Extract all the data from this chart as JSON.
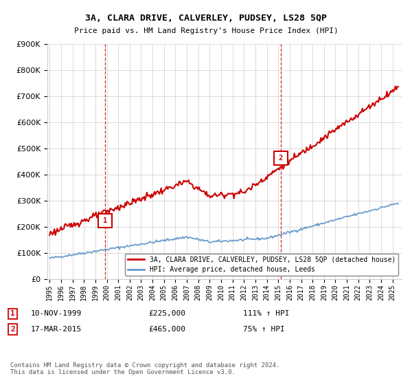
{
  "title": "3A, CLARA DRIVE, CALVERLEY, PUDSEY, LS28 5QP",
  "subtitle": "Price paid vs. HM Land Registry's House Price Index (HPI)",
  "legend_line1": "3A, CLARA DRIVE, CALVERLEY, PUDSEY, LS28 5QP (detached house)",
  "legend_line2": "HPI: Average price, detached house, Leeds",
  "footnote": "Contains HM Land Registry data © Crown copyright and database right 2024.\nThis data is licensed under the Open Government Licence v3.0.",
  "transactions": [
    {
      "label": "1",
      "date": "10-NOV-1999",
      "price": "£225,000",
      "hpi": "111% ↑ HPI",
      "year": 1999.87
    },
    {
      "label": "2",
      "date": "17-MAR-2015",
      "price": "£465,000",
      "hpi": "75% ↑ HPI",
      "year": 2015.21
    }
  ],
  "transaction_prices": [
    225000,
    465000
  ],
  "transaction_years": [
    1999.87,
    2015.21
  ],
  "red_color": "#cc0000",
  "blue_color": "#6699cc",
  "vline_color": "#cc0000",
  "ylim": [
    0,
    900000
  ],
  "xlim_start": 1994.8,
  "xlim_end": 2025.8,
  "background_color": "#ffffff"
}
